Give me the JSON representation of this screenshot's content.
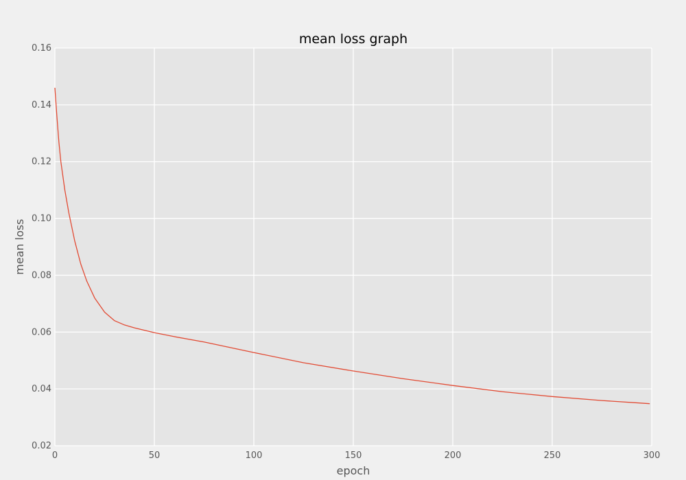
{
  "chart_data": {
    "type": "line",
    "title": "mean loss graph",
    "xlabel": "epoch",
    "ylabel": "mean loss",
    "xlim": [
      0,
      300
    ],
    "ylim": [
      0.02,
      0.16
    ],
    "grid": true,
    "x_ticks": [
      0,
      50,
      100,
      150,
      200,
      250,
      300
    ],
    "x_tick_labels": [
      "0",
      "50",
      "100",
      "150",
      "200",
      "250",
      "300"
    ],
    "y_ticks": [
      0.02,
      0.04,
      0.06,
      0.08,
      0.1,
      0.12,
      0.14,
      0.16
    ],
    "y_tick_labels": [
      "0.02",
      "0.04",
      "0.06",
      "0.08",
      "0.10",
      "0.12",
      "0.14",
      "0.16"
    ],
    "series": [
      {
        "color": "#e24a33",
        "x": [
          0,
          1,
          2,
          3,
          5,
          7,
          10,
          13,
          16,
          20,
          25,
          30,
          35,
          40,
          50,
          60,
          75,
          100,
          125,
          150,
          175,
          200,
          225,
          250,
          275,
          299
        ],
        "y": [
          0.146,
          0.136,
          0.127,
          0.12,
          0.11,
          0.102,
          0.092,
          0.084,
          0.078,
          0.072,
          0.067,
          0.064,
          0.0625,
          0.0615,
          0.0598,
          0.0584,
          0.0565,
          0.0528,
          0.0492,
          0.0463,
          0.0436,
          0.0412,
          0.039,
          0.0373,
          0.0359,
          0.0348
        ]
      }
    ]
  },
  "colors": {
    "page_background": "#f0f0f0",
    "plot_background": "#e5e5e5",
    "grid": "#ffffff",
    "line": "#e24a33",
    "text": "#555555"
  }
}
